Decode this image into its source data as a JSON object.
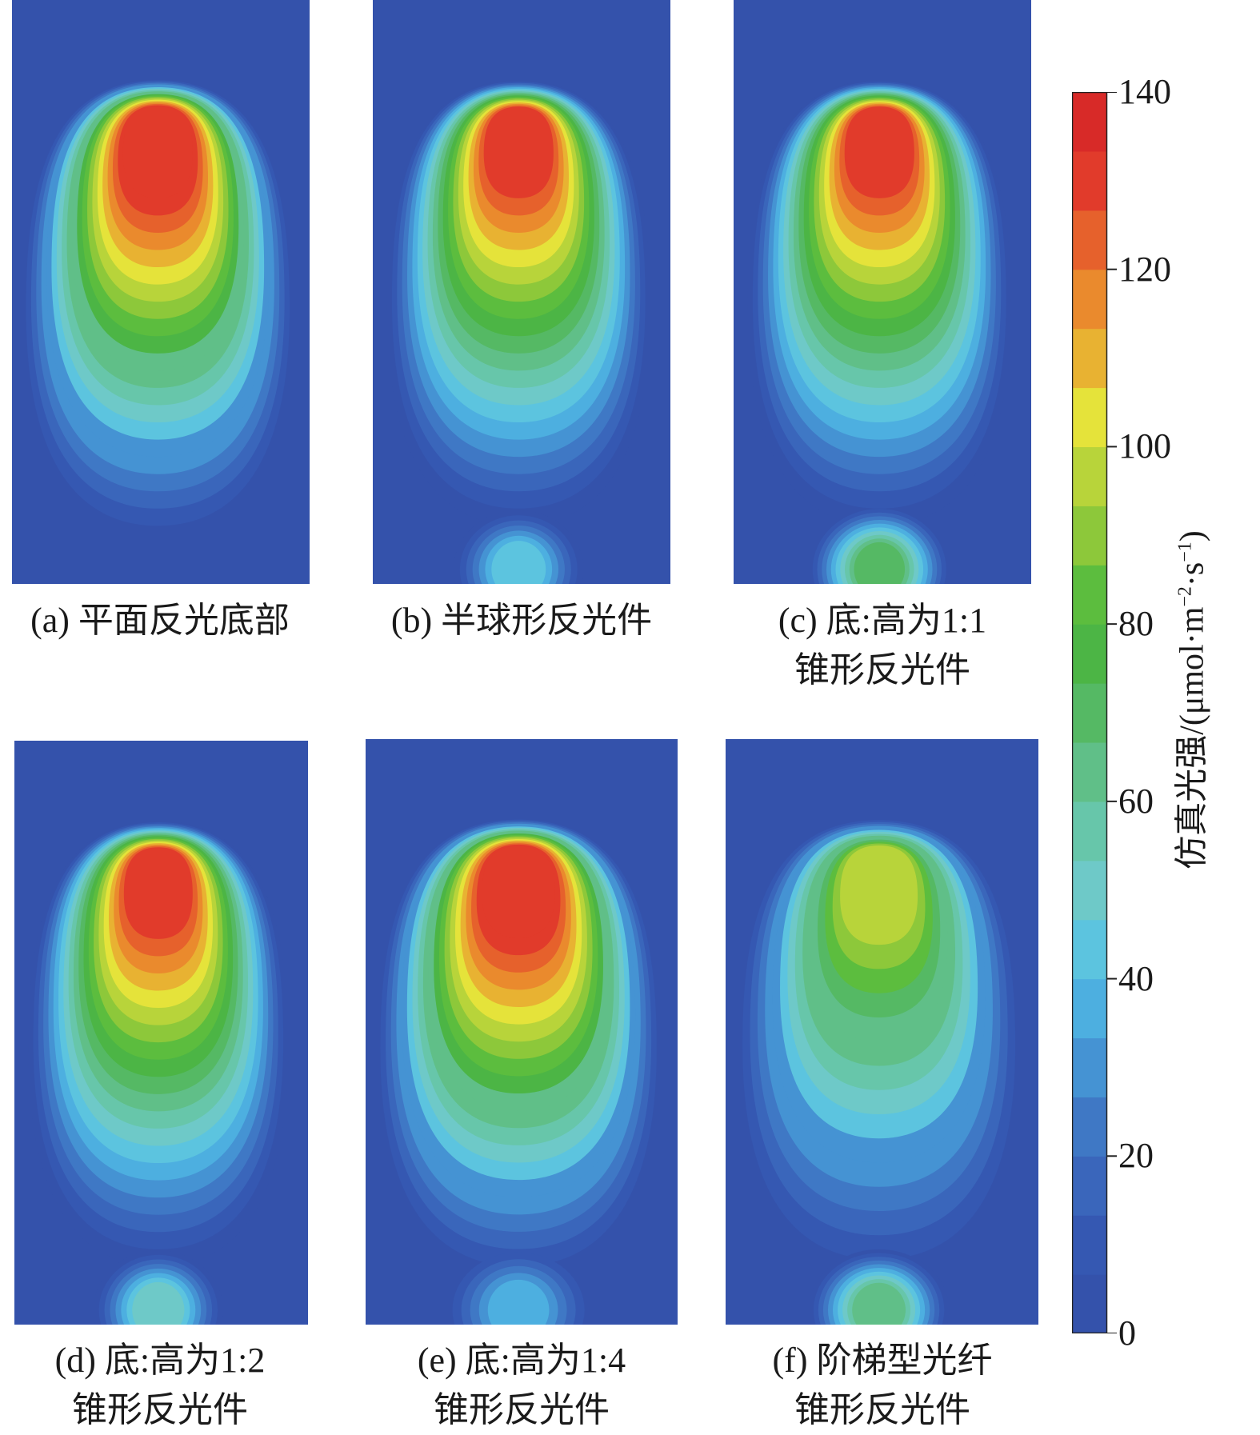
{
  "chart_data": {
    "type": "heatmap",
    "colorbar": {
      "ticks": [
        0,
        20,
        40,
        60,
        80,
        100,
        120,
        140
      ],
      "range": [
        0,
        140
      ],
      "level_step": 7.368,
      "colors": [
        "#3452ab",
        "#3558b2",
        "#3a66bb",
        "#3f78c5",
        "#4593d3",
        "#4dafe0",
        "#5cc4df",
        "#6ec9c8",
        "#67c6aa",
        "#60bf88",
        "#55b964",
        "#4cb545",
        "#5cbd3e",
        "#8dc83a",
        "#b8d43a",
        "#e5e33a",
        "#e8b232",
        "#ea8a2d",
        "#e6612c",
        "#e13b2b",
        "#d82a28"
      ],
      "label_main": "仿真光强/(μmol·m",
      "label_exp1": "−2",
      "label_mid": "·s",
      "label_exp2": "−1",
      "label_end": ")"
    },
    "panels": [
      {
        "caption_line1": "(a) 平面反光底部",
        "caption_line2": "",
        "peak_value": 140,
        "tail_blob_value": 0
      },
      {
        "caption_line1": "(b) 半球形反光件",
        "caption_line2": "",
        "peak_value": 138,
        "tail_blob_value": 52
      },
      {
        "caption_line1": "(c) 底:高为1:1",
        "caption_line2": "锥形反光件",
        "peak_value": 139,
        "tail_blob_value": 75
      },
      {
        "caption_line1": "(d)  底:高为1:2",
        "caption_line2": "锥形反光件",
        "peak_value": 139,
        "tail_blob_value": 58
      },
      {
        "caption_line1": "(e) 底:高为1:4",
        "caption_line2": "锥形反光件",
        "peak_value": 140,
        "tail_blob_value": 40
      },
      {
        "caption_line1": "(f) 阶梯型光纤",
        "caption_line2": "锥形反光件",
        "peak_value": 100,
        "tail_blob_value": 70
      }
    ]
  }
}
